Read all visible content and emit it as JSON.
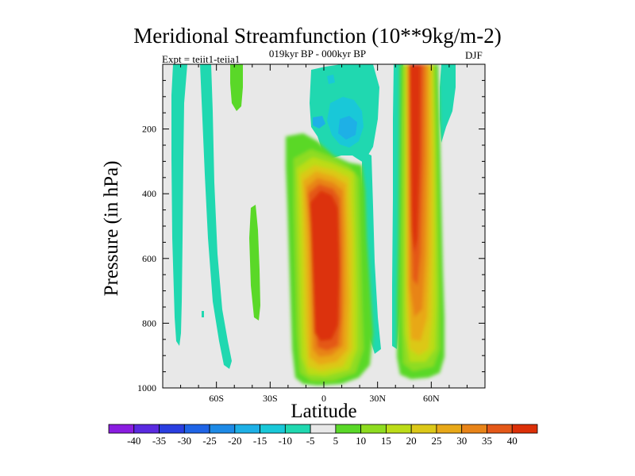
{
  "chart_data": {
    "type": "heatmap",
    "title": "Meridional Streamfunction (10**9kg/m-2)",
    "subtitle": "019kyr BP - 000kyr BP",
    "left_label": "Expt = teiit1-teiia1",
    "right_label": "DJF",
    "xlabel": "Latitude",
    "ylabel": "Pressure (in hPa)",
    "x_ticks": [
      {
        "value": -60,
        "label": "60S"
      },
      {
        "value": -30,
        "label": "30S"
      },
      {
        "value": 0,
        "label": "0"
      },
      {
        "value": 30,
        "label": "30N"
      },
      {
        "value": 60,
        "label": "60N"
      }
    ],
    "y_ticks": [
      {
        "value": 200,
        "label": "200"
      },
      {
        "value": 400,
        "label": "400"
      },
      {
        "value": 600,
        "label": "600"
      },
      {
        "value": 800,
        "label": "800"
      },
      {
        "value": 1000,
        "label": "1000"
      }
    ],
    "xlim": [
      -90,
      90
    ],
    "ylim": [
      1000,
      0
    ],
    "y_inverted": true,
    "colorbar": {
      "levels": [
        -40,
        -35,
        -30,
        -25,
        -20,
        -15,
        -10,
        -5,
        5,
        10,
        15,
        20,
        25,
        30,
        35,
        40
      ],
      "labels": [
        "-40",
        "-35",
        "-30",
        "-25",
        "-20",
        "-15",
        "-10",
        "-5",
        "5",
        "10",
        "15",
        "20",
        "25",
        "30",
        "35",
        "40"
      ],
      "colors": [
        "#8a1de0",
        "#5a2ae0",
        "#2a3ee0",
        "#1f64e6",
        "#1e8ae6",
        "#1eb0e6",
        "#19c8d8",
        "#20d8b0",
        "#e8e8e8",
        "#5ad828",
        "#8edc20",
        "#bcdc18",
        "#dcc818",
        "#e8a818",
        "#e88418",
        "#e45818",
        "#dc3008"
      ]
    },
    "features": [
      {
        "label": "tropical cell",
        "lat_range": [
          -12,
          10
        ],
        "p_range": [
          300,
          970
        ],
        "peak_value": 40
      },
      {
        "label": "northern midlatitude column",
        "lat_range": [
          44,
          66
        ],
        "p_range": [
          0,
          960
        ],
        "peak_value": 40
      },
      {
        "label": "upper tropical negative lobe",
        "lat_range": [
          -5,
          25
        ],
        "p_range": [
          20,
          330
        ],
        "peak_value": -15
      },
      {
        "label": "southern negative bands",
        "lat_range": [
          -85,
          -48
        ],
        "p_range": [
          0,
          940
        ],
        "peak_value": -5
      }
    ]
  }
}
